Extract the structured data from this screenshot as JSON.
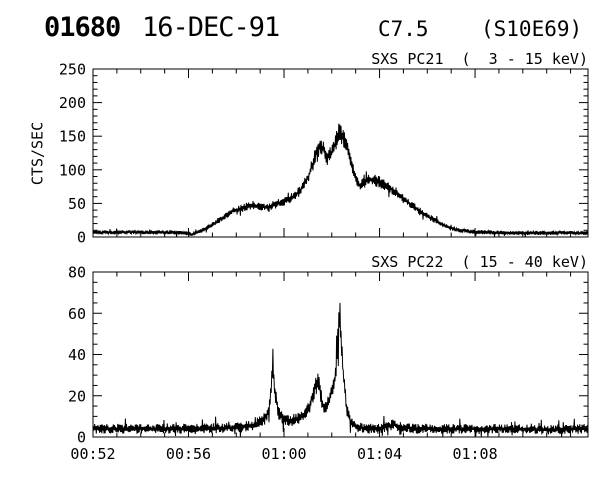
{
  "header": {
    "event_id": "01680",
    "date": "16-DEC-91",
    "goes_class": "C7.5",
    "location": "(S10E69)"
  },
  "colors": {
    "foreground": "#000000",
    "background": "#ffffff"
  },
  "chart_data": [
    {
      "type": "line",
      "title": "SXS PC21  (  3 - 15 keV)",
      "ylabel": "CTS/SEC",
      "ylim": [
        0,
        250
      ],
      "yticks": [
        0,
        50,
        100,
        150,
        200,
        250
      ],
      "yminor": 10,
      "xlim": [
        0,
        20.73
      ],
      "xticks": [
        {
          "m": 0,
          "label": "00:52"
        },
        {
          "m": 4,
          "label": "00:56"
        },
        {
          "m": 8,
          "label": "01:00"
        },
        {
          "m": 12,
          "label": "01:04"
        },
        {
          "m": 16,
          "label": "01:08"
        }
      ],
      "xminor": 1,
      "grid": false,
      "series": [
        {
          "name": "SXS PC21 (3-15 keV) counts",
          "keypoints": [
            [
              0,
              7
            ],
            [
              1,
              7
            ],
            [
              2,
              7
            ],
            [
              3,
              7
            ],
            [
              3.8,
              6
            ],
            [
              4.2,
              4
            ],
            [
              4.5,
              9
            ],
            [
              5,
              18
            ],
            [
              5.4,
              28
            ],
            [
              5.8,
              38
            ],
            [
              6.2,
              43
            ],
            [
              6.6,
              46
            ],
            [
              7,
              45
            ],
            [
              7.3,
              44
            ],
            [
              7.6,
              48
            ],
            [
              8,
              53
            ],
            [
              8.4,
              60
            ],
            [
              8.7,
              70
            ],
            [
              9,
              88
            ],
            [
              9.2,
              108
            ],
            [
              9.35,
              128
            ],
            [
              9.5,
              138
            ],
            [
              9.65,
              130
            ],
            [
              9.8,
              118
            ],
            [
              10,
              126
            ],
            [
              10.15,
              140
            ],
            [
              10.3,
              158
            ],
            [
              10.45,
              150
            ],
            [
              10.6,
              138
            ],
            [
              10.75,
              122
            ],
            [
              10.9,
              100
            ],
            [
              11.05,
              82
            ],
            [
              11.2,
              76
            ],
            [
              11.4,
              82
            ],
            [
              11.6,
              86
            ],
            [
              11.85,
              84
            ],
            [
              12.1,
              80
            ],
            [
              12.4,
              74
            ],
            [
              12.7,
              66
            ],
            [
              13,
              57
            ],
            [
              13.4,
              46
            ],
            [
              13.8,
              36
            ],
            [
              14.2,
              27
            ],
            [
              14.6,
              19
            ],
            [
              15,
              13
            ],
            [
              15.4,
              10
            ],
            [
              15.8,
              8
            ],
            [
              16.5,
              7
            ],
            [
              17.5,
              6
            ],
            [
              19,
              6
            ],
            [
              20.73,
              6
            ]
          ]
        }
      ],
      "noise": {
        "base": 2.6,
        "scale": 0.075,
        "spike_p": 0.05,
        "spike_mult": 2.0,
        "vmax": 176,
        "seed": 11
      }
    },
    {
      "type": "line",
      "title": "SXS PC22  ( 15 - 40 keV)",
      "ylabel": "",
      "ylim": [
        0,
        80
      ],
      "yticks": [
        0,
        20,
        40,
        60,
        80
      ],
      "yminor": 5,
      "xlim": [
        0,
        20.73
      ],
      "xticks": [
        {
          "m": 0,
          "label": "00:52"
        },
        {
          "m": 4,
          "label": "00:56"
        },
        {
          "m": 8,
          "label": "01:00"
        },
        {
          "m": 12,
          "label": "01:04"
        },
        {
          "m": 16,
          "label": "01:08"
        }
      ],
      "xminor": 1,
      "grid": false,
      "series": [
        {
          "name": "SXS PC22 (15-40 keV) counts",
          "keypoints": [
            [
              0,
              4
            ],
            [
              2,
              4
            ],
            [
              4,
              4
            ],
            [
              6,
              4.5
            ],
            [
              6.8,
              6
            ],
            [
              7.2,
              9
            ],
            [
              7.38,
              14
            ],
            [
              7.48,
              28
            ],
            [
              7.55,
              33
            ],
            [
              7.62,
              22
            ],
            [
              7.75,
              12
            ],
            [
              8,
              8
            ],
            [
              8.3,
              8
            ],
            [
              8.6,
              9
            ],
            [
              8.9,
              11
            ],
            [
              9.1,
              16
            ],
            [
              9.3,
              24
            ],
            [
              9.45,
              27
            ],
            [
              9.6,
              16
            ],
            [
              9.75,
              14
            ],
            [
              9.9,
              18
            ],
            [
              10.05,
              24
            ],
            [
              10.18,
              32
            ],
            [
              10.26,
              48
            ],
            [
              10.33,
              62
            ],
            [
              10.4,
              44
            ],
            [
              10.5,
              28
            ],
            [
              10.62,
              14
            ],
            [
              10.8,
              7
            ],
            [
              11,
              5
            ],
            [
              11.5,
              4
            ],
            [
              12,
              4
            ],
            [
              12.6,
              6
            ],
            [
              12.8,
              5
            ],
            [
              13.5,
              4
            ],
            [
              15,
              4
            ],
            [
              17,
              4
            ],
            [
              19,
              3.5
            ],
            [
              20.73,
              4
            ]
          ]
        }
      ],
      "noise": {
        "base": 2.0,
        "scale": 0.1,
        "spike_p": 0.05,
        "spike_mult": 2.4,
        "vmax": 65,
        "seed": 23
      }
    }
  ]
}
